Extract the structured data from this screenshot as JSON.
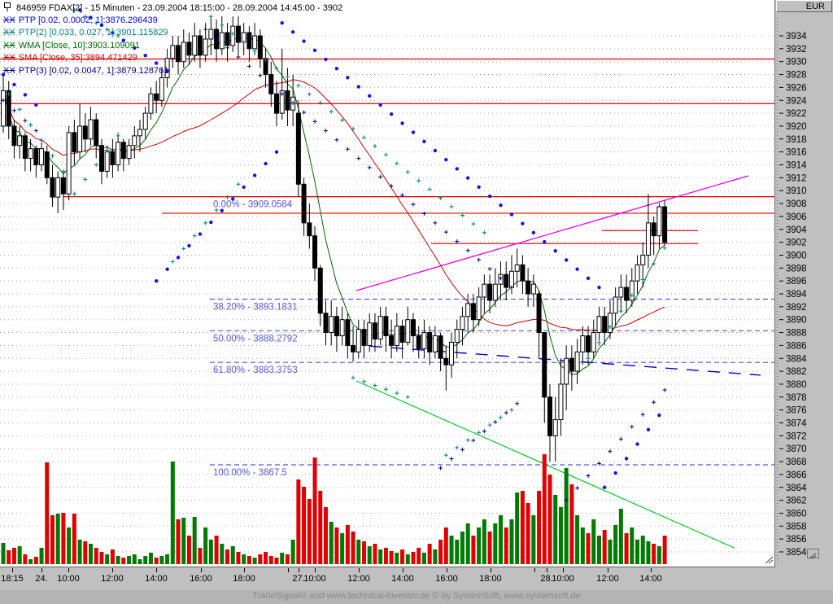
{
  "window": {
    "currency_label": "EUR",
    "footer_text": "TradeSignal® and www.technical-investor.de © by SystemSoft, www.systemsoft.de"
  },
  "legend": {
    "title": "846959  FDAX[2] - 15 Minuten - 23.09.2004 18:15:00 - 28.09.2004 14:45:00 - 3902",
    "indicators": [
      {
        "prefix": "XX",
        "label": "PTP [0.02, 0.0002, 1]:3876.296439",
        "color": "#0000dd"
      },
      {
        "prefix": "XX",
        "label": "PTP(2) [0.033, 0.027, 1]:3901.115829",
        "color": "#008080"
      },
      {
        "prefix": "XX",
        "label": "WMA [Close, 10]:3903.109091",
        "color": "#006600"
      },
      {
        "prefix": "XX",
        "label": "SMA [Close, 35]:3894.471429",
        "color": "#dd0000"
      },
      {
        "prefix": "XX",
        "label": "PTP(3) [0.02, 0.0047, 1]:3879.128761",
        "color": "#000080"
      }
    ]
  },
  "chart_data": {
    "type": "candlestick",
    "instrument": "FDAX",
    "security_id": "846959",
    "timeframe": "15 Minuten",
    "period": "23.09.2004 18:15:00 - 28.09.2004 14:45:00",
    "last_price": 3902,
    "currency": "EUR",
    "grid": true,
    "y_axis": {
      "min": 3854,
      "max": 3934,
      "step": 2
    },
    "x_ticks": [
      {
        "x": 15,
        "label": "18:15"
      },
      {
        "x": 51,
        "label": "24."
      },
      {
        "x": 84,
        "label": "10:00"
      },
      {
        "x": 138,
        "label": "12:00"
      },
      {
        "x": 192,
        "label": "14:00"
      },
      {
        "x": 247,
        "label": "16:00"
      },
      {
        "x": 300,
        "label": "18:00"
      },
      {
        "x": 354,
        "label": ""
      },
      {
        "x": 367,
        "label": "27."
      },
      {
        "x": 387,
        "label": "10:00"
      },
      {
        "x": 441,
        "label": "12:00"
      },
      {
        "x": 495,
        "label": "14:00"
      },
      {
        "x": 549,
        "label": "16:00"
      },
      {
        "x": 603,
        "label": "18:00"
      },
      {
        "x": 657,
        "label": ""
      },
      {
        "x": 672,
        "label": "28."
      },
      {
        "x": 692,
        "label": "10:00"
      },
      {
        "x": 747,
        "label": "12:00"
      },
      {
        "x": 800,
        "label": "14:00"
      }
    ],
    "candles": [
      [
        3920,
        3928,
        3919,
        3925.5
      ],
      [
        3925.5,
        3927,
        3918,
        3920
      ],
      [
        3920,
        3921,
        3915,
        3917
      ],
      [
        3917,
        3920,
        3915,
        3918.5
      ],
      [
        3918.5,
        3919,
        3913,
        3915
      ],
      [
        3915,
        3918,
        3913,
        3916.5
      ],
      [
        3916.5,
        3917,
        3912,
        3914
      ],
      [
        3914,
        3917.5,
        3913,
        3916.5
      ],
      [
        3916,
        3917,
        3911,
        3912
      ],
      [
        3912,
        3914,
        3907.5,
        3909
      ],
      [
        3909,
        3913,
        3906.5,
        3912
      ],
      [
        3912,
        3913,
        3907,
        3909.5
      ],
      [
        3909.5,
        3920,
        3908.5,
        3919
      ],
      [
        3919,
        3921,
        3914,
        3916
      ],
      [
        3916,
        3923.5,
        3915,
        3920
      ],
      [
        3920,
        3922,
        3916,
        3918
      ],
      [
        3918,
        3923,
        3917,
        3921
      ],
      [
        3921,
        3922,
        3915,
        3917
      ],
      [
        3917,
        3918,
        3911,
        3913
      ],
      [
        3913,
        3917,
        3912,
        3916
      ],
      [
        3916,
        3918,
        3912,
        3914
      ],
      [
        3914,
        3919,
        3913,
        3917.5
      ],
      [
        3917.5,
        3918,
        3913,
        3915
      ],
      [
        3915,
        3918,
        3914,
        3917
      ],
      [
        3917,
        3920,
        3915,
        3918.5
      ],
      [
        3918.5,
        3921,
        3916,
        3919.5
      ],
      [
        3919.5,
        3923,
        3918,
        3922
      ],
      [
        3922,
        3926,
        3921,
        3925
      ],
      [
        3925,
        3927,
        3922,
        3924
      ],
      [
        3924,
        3929,
        3923,
        3927.5
      ],
      [
        3927.5,
        3932,
        3926,
        3930.5
      ],
      [
        3930.5,
        3934,
        3929,
        3932.5
      ],
      [
        3932.5,
        3934,
        3928,
        3930
      ],
      [
        3930,
        3935,
        3929,
        3933
      ],
      [
        3933,
        3934.5,
        3929.5,
        3931
      ],
      [
        3931,
        3936,
        3930,
        3934
      ],
      [
        3934,
        3935,
        3929,
        3931
      ],
      [
        3931,
        3936,
        3930,
        3933.5
      ],
      [
        3933.5,
        3937,
        3931,
        3935
      ],
      [
        3935,
        3936.5,
        3930,
        3932
      ],
      [
        3932,
        3937,
        3931,
        3934.5
      ],
      [
        3934.5,
        3936,
        3930,
        3932.5
      ],
      [
        3932.5,
        3937,
        3931.5,
        3935.5
      ],
      [
        3935.5,
        3937,
        3931,
        3933
      ],
      [
        3933,
        3936,
        3931,
        3934.5
      ],
      [
        3934.5,
        3935.5,
        3930,
        3932
      ],
      [
        3932,
        3936,
        3931,
        3934
      ],
      [
        3934,
        3935,
        3929,
        3930.5
      ],
      [
        3930.5,
        3932,
        3926,
        3928
      ],
      [
        3928,
        3930,
        3923,
        3925
      ],
      [
        3925,
        3927,
        3920,
        3922
      ],
      [
        3922,
        3932,
        3921,
        3925.5
      ],
      [
        3925.5,
        3929,
        3920,
        3922.5
      ],
      [
        3922.5,
        3928,
        3920,
        3924.5
      ],
      [
        3922,
        3924,
        3909,
        3911
      ],
      [
        3911,
        3912,
        3903,
        3905
      ],
      [
        3905,
        3908,
        3901,
        3903
      ],
      [
        3903,
        3904.5,
        3896,
        3898
      ],
      [
        3898,
        3898.5,
        3889,
        3891
      ],
      [
        3891,
        3893,
        3886,
        3888
      ],
      [
        3888,
        3893,
        3886,
        3890.5
      ],
      [
        3890.5,
        3892,
        3885,
        3887.5
      ],
      [
        3887.5,
        3892,
        3886,
        3890
      ],
      [
        3890,
        3891,
        3884,
        3886
      ],
      [
        3886,
        3889,
        3883.5,
        3885
      ],
      [
        3885,
        3890,
        3884,
        3888.5
      ],
      [
        3888.5,
        3890,
        3884,
        3886
      ],
      [
        3886,
        3891,
        3885,
        3889.5
      ],
      [
        3889.5,
        3891,
        3885,
        3887
      ],
      [
        3887,
        3892,
        3886,
        3890.5
      ],
      [
        3890.5,
        3892,
        3885,
        3887.5
      ],
      [
        3887.5,
        3890,
        3884,
        3886
      ],
      [
        3886,
        3891,
        3885,
        3889
      ],
      [
        3889,
        3890,
        3884,
        3886.5
      ],
      [
        3886.5,
        3892,
        3886,
        3890
      ],
      [
        3890,
        3891,
        3885,
        3887.5
      ],
      [
        3887.5,
        3889,
        3884,
        3885.5
      ],
      [
        3885.5,
        3890,
        3884,
        3888
      ],
      [
        3888,
        3889,
        3883,
        3885
      ],
      [
        3885,
        3889,
        3884,
        3887.5
      ],
      [
        3887.5,
        3888,
        3882,
        3884
      ],
      [
        3884,
        3886,
        3879,
        3883
      ],
      [
        3883,
        3888,
        3881,
        3886.5
      ],
      [
        3886.5,
        3890,
        3884,
        3888.5
      ],
      [
        3888.5,
        3892,
        3886,
        3890.5
      ],
      [
        3890.5,
        3894,
        3888,
        3892.5
      ],
      [
        3892.5,
        3894,
        3888,
        3890
      ],
      [
        3890,
        3895,
        3889,
        3893.5
      ],
      [
        3893.5,
        3897,
        3891,
        3895.5
      ],
      [
        3895.5,
        3897,
        3891,
        3893
      ],
      [
        3893,
        3898,
        3892,
        3895.5
      ],
      [
        3895.5,
        3899,
        3893,
        3897
      ],
      [
        3897,
        3899,
        3893,
        3895
      ],
      [
        3895,
        3900,
        3894,
        3897.5
      ],
      [
        3897.5,
        3901,
        3895,
        3898.5
      ],
      [
        3898.5,
        3900,
        3894,
        3896
      ],
      [
        3896,
        3898,
        3892,
        3894
      ],
      [
        3894,
        3897,
        3892,
        3895.5
      ],
      [
        3894,
        3894.5,
        3884,
        3888
      ],
      [
        3888,
        3888,
        3874,
        3878
      ],
      [
        3878,
        3880,
        3868,
        3872
      ],
      [
        3872,
        3878,
        3868,
        3874.5
      ],
      [
        3874.5,
        3884,
        3872,
        3880
      ],
      [
        3880,
        3886,
        3876,
        3884
      ],
      [
        3884,
        3886,
        3879,
        3882
      ],
      [
        3882,
        3887,
        3880,
        3885
      ],
      [
        3885,
        3889,
        3883,
        3887.5
      ],
      [
        3887.5,
        3889,
        3883,
        3885
      ],
      [
        3885,
        3890,
        3884,
        3888
      ],
      [
        3888,
        3892,
        3886,
        3890.5
      ],
      [
        3890.5,
        3892,
        3886,
        3888
      ],
      [
        3888,
        3893,
        3887,
        3891
      ],
      [
        3891,
        3895,
        3889,
        3893.5
      ],
      [
        3893.5,
        3897,
        3891,
        3895
      ],
      [
        3895,
        3897,
        3891,
        3893
      ],
      [
        3893,
        3898,
        3892,
        3896
      ],
      [
        3896,
        3900,
        3894,
        3898.5
      ],
      [
        3898.5,
        3902,
        3895,
        3900
      ],
      [
        3900,
        3909.5,
        3898,
        3905
      ],
      [
        3905,
        3906,
        3900,
        3903
      ],
      [
        3903,
        3908,
        3901,
        3907.5
      ],
      [
        3907.5,
        3908.5,
        3901.5,
        3902
      ]
    ],
    "volume": [
      26,
      17,
      20,
      22,
      12,
      6,
      9,
      20,
      125,
      60,
      62,
      63,
      45,
      62,
      30,
      28,
      25,
      20,
      15,
      12,
      18,
      10,
      8,
      10,
      12,
      6,
      10,
      14,
      8,
      10,
      12,
      126,
      55,
      57,
      35,
      58,
      20,
      45,
      30,
      35,
      25,
      18,
      22,
      15,
      12,
      10,
      8,
      12,
      15,
      10,
      8,
      14,
      12,
      30,
      104,
      95,
      80,
      131,
      90,
      70,
      52,
      45,
      38,
      48,
      40,
      30,
      28,
      22,
      25,
      18,
      20,
      16,
      14,
      18,
      12,
      15,
      20,
      14,
      25,
      18,
      30,
      45,
      35,
      30,
      40,
      50,
      35,
      45,
      55,
      40,
      50,
      60,
      45,
      55,
      88,
      90,
      75,
      60,
      90,
      135,
      110,
      85,
      70,
      118,
      98,
      60,
      45,
      38,
      55,
      35,
      42,
      30,
      48,
      68,
      38,
      45,
      30,
      35,
      28,
      25,
      22,
      35
    ],
    "indicators": {
      "wma_period": 10,
      "sma_period": 35,
      "wma_color": "#006600",
      "sma_color": "#cc0000"
    },
    "fib_retracement": {
      "start_x": 258,
      "color": "#5555e0",
      "levels": [
        {
          "label": "0.00% - 3909.0584",
          "price": 3909.0584
        },
        {
          "label": "38.20% - 3893.1831",
          "price": 3893.1831
        },
        {
          "label": "50.00% - 3888.2792",
          "price": 3888.2792
        },
        {
          "label": "61.80% - 3883.3753",
          "price": 3883.3753
        },
        {
          "label": "100.00% - 3867.5",
          "price": 3867.5
        }
      ]
    },
    "h_lines": [
      {
        "price": 3930.4,
        "x1": 0,
        "x2": 952,
        "color": "#e00000"
      },
      {
        "price": 3923.5,
        "x1": 0,
        "x2": 952,
        "color": "#e00000"
      },
      {
        "price": 3909.06,
        "x1": 78,
        "x2": 952,
        "color": "#e00000"
      },
      {
        "price": 3906.5,
        "x1": 199,
        "x2": 952,
        "color": "#e00000"
      },
      {
        "price": 3903.8,
        "x1": 740,
        "x2": 858,
        "color": "#e00000"
      },
      {
        "price": 3901.8,
        "x1": 530,
        "x2": 858,
        "color": "#e00000"
      }
    ],
    "trend_lines": [
      {
        "name": "rising-magenta-trendline",
        "color": "#e800e8",
        "width": 1.3,
        "dash": null,
        "x1": 438,
        "p1": 3894.5,
        "x2": 920,
        "p2": 3912.3
      },
      {
        "name": "falling-green-trendline",
        "color": "#00cc22",
        "width": 1.2,
        "dash": null,
        "x1": 438,
        "p1": 3880.5,
        "x2": 903,
        "p2": 3854.6
      },
      {
        "name": "falling-blue-dashed-trendline",
        "color": "#0000c8",
        "width": 1.4,
        "dash": "15 11",
        "x1": 455,
        "p1": 3885.9,
        "x2": 935,
        "p2": 3881.4
      }
    ],
    "dot_chains": [
      {
        "series": "PTP",
        "style": "dot",
        "color": "#1515dd",
        "step": 2,
        "i1": 0,
        "p1": 3928,
        "i2": 7,
        "p2": 3922.5
      },
      {
        "series": "PTP",
        "style": "dot",
        "color": "#1515dd",
        "step": 2,
        "i1": 14,
        "p1": 3938,
        "i2": 31,
        "p2": 3928
      },
      {
        "series": "PTP",
        "style": "dot",
        "color": "#1515dd",
        "step": 2,
        "i1": 28,
        "p1": 3896,
        "i2": 50,
        "p2": 3916
      },
      {
        "series": "PTP",
        "style": "dot",
        "color": "#1515dd",
        "step": 2,
        "i1": 51,
        "p1": 3936,
        "i2": 109,
        "p2": 3895
      },
      {
        "series": "PTP",
        "style": "dot",
        "color": "#1515dd",
        "step": 2,
        "i1": 110,
        "p1": 3864,
        "i2": 121,
        "p2": 3876.3
      },
      {
        "series": "PTP(3)",
        "style": "cross",
        "color": "#000080",
        "step": 2,
        "i1": 0,
        "p1": 3924,
        "i2": 7,
        "p2": 3918.5
      },
      {
        "series": "PTP(3)",
        "style": "cross",
        "color": "#000080",
        "step": 2,
        "i1": 37,
        "p1": 3935,
        "i2": 93,
        "p2": 3895
      },
      {
        "series": "PTP(3)",
        "style": "cross",
        "color": "#000080",
        "step": 2,
        "i1": 80,
        "p1": 3867,
        "i2": 94,
        "p2": 3877
      },
      {
        "series": "PTP(3)",
        "style": "cross",
        "color": "#000080",
        "step": 2,
        "i1": 103,
        "p1": 3862,
        "i2": 121,
        "p2": 3879.1
      },
      {
        "series": "PTP(2)",
        "style": "cross",
        "color": "#008080",
        "step": 2,
        "i1": 1,
        "p1": 3925,
        "i2": 11,
        "p2": 3913
      },
      {
        "series": "PTP(2)",
        "style": "cross",
        "color": "#008080",
        "step": 2,
        "i1": 13,
        "p1": 3909.5,
        "i2": 21,
        "p2": 3918.5
      },
      {
        "series": "PTP(2)",
        "style": "cross",
        "color": "#008080",
        "step": 2,
        "i1": 13,
        "p1": 3938,
        "i2": 21,
        "p2": 3934
      },
      {
        "series": "PTP(2)",
        "style": "cross",
        "color": "#008080",
        "step": 2,
        "i1": 31,
        "p1": 3899,
        "i2": 44,
        "p2": 3912
      },
      {
        "series": "PTP(2)",
        "style": "cross",
        "color": "#008080",
        "step": 2,
        "i1": 38,
        "p1": 3937,
        "i2": 88,
        "p2": 3903.5
      },
      {
        "series": "PTP(2)",
        "style": "cross",
        "color": "#008080",
        "step": 2,
        "i1": 64,
        "p1": 3881,
        "i2": 74,
        "p2": 3878
      },
      {
        "series": "PTP(2)",
        "style": "cross",
        "color": "#008080",
        "step": 2,
        "i1": 81,
        "p1": 3869,
        "i2": 93,
        "p2": 3876
      },
      {
        "series": "PTP(2)",
        "style": "cross",
        "color": "#008080",
        "step": 2,
        "i1": 107,
        "p1": 3884,
        "i2": 121,
        "p2": 3901.1
      }
    ],
    "colors": {
      "up_candle": "#ffffff",
      "down_candle": "#000000",
      "candle_outline": "#000000",
      "volume_up": "#007a00",
      "volume_down": "#e00000",
      "grid": "#a8a8a8",
      "background": "#ffffff"
    }
  }
}
